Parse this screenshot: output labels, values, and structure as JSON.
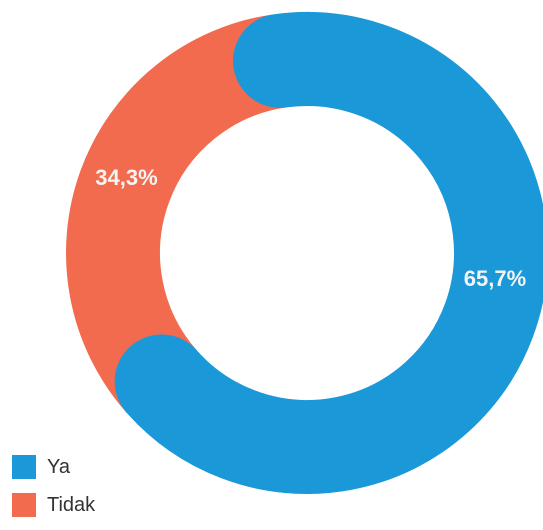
{
  "chart_data": {
    "type": "pie",
    "variant": "donut",
    "title": "",
    "slices": [
      {
        "label": "Ya",
        "value": 65.7,
        "display": "65,7%",
        "color": "#1b98d8"
      },
      {
        "label": "Tidak",
        "value": 34.3,
        "display": "34,3%",
        "color": "#f26b4e"
      }
    ],
    "legend_placement": "bottom-left",
    "label_color": "#f3f4f4"
  }
}
